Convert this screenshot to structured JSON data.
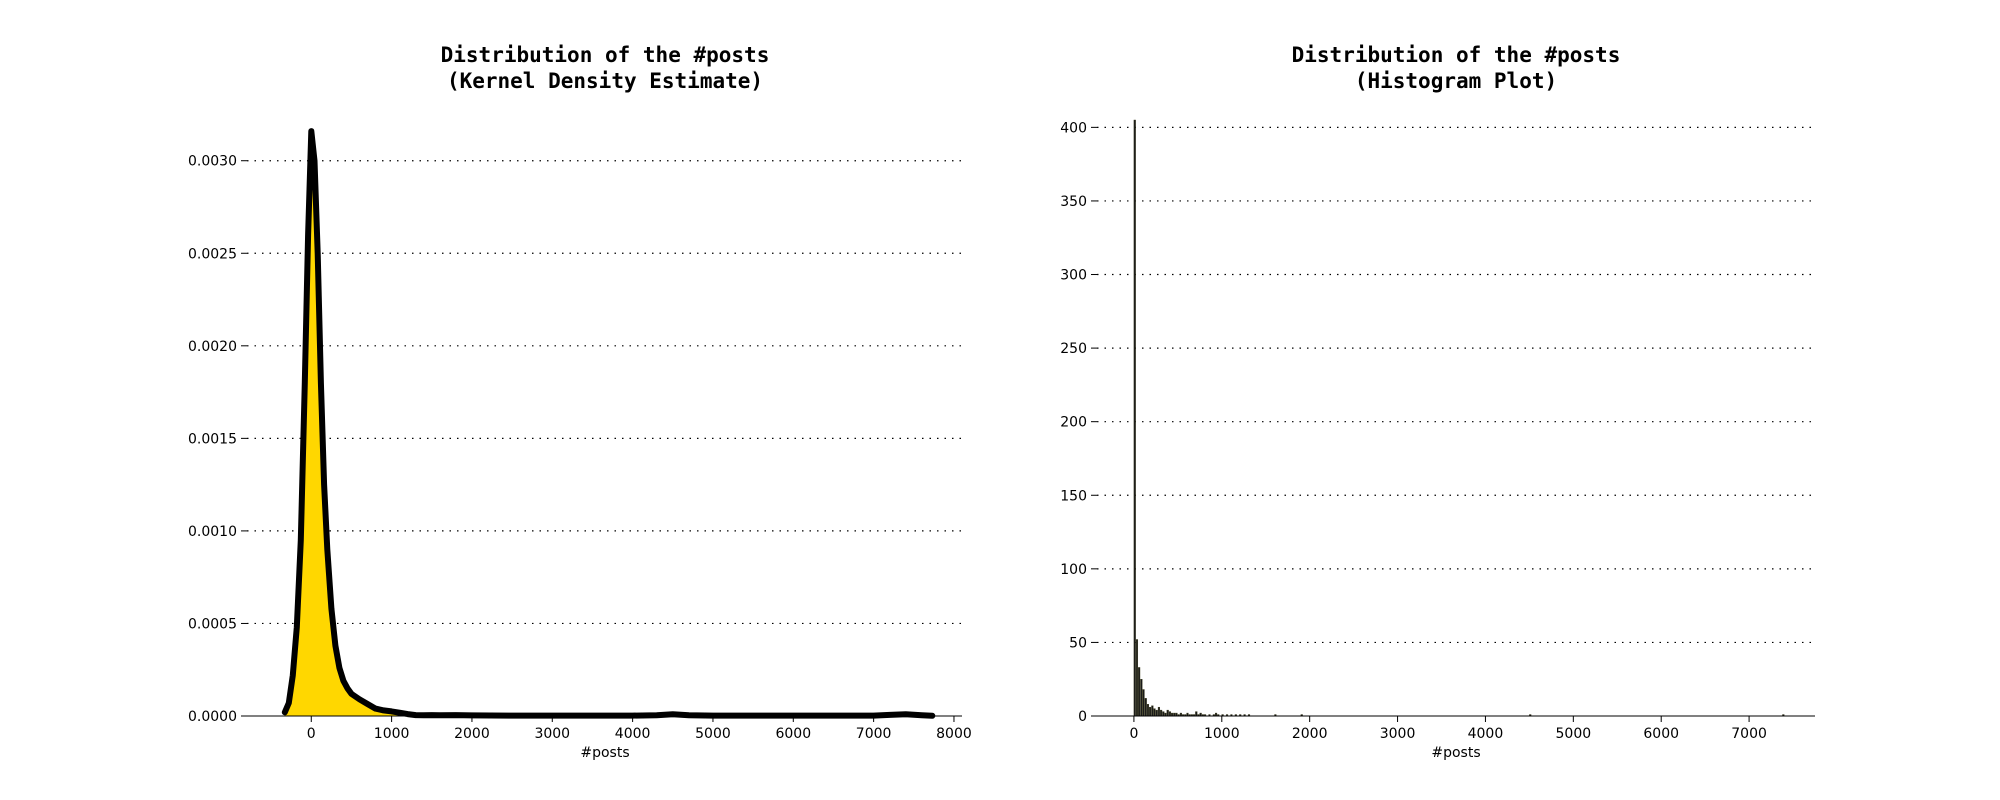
{
  "chart_data": [
    {
      "type": "area",
      "title_line1": "Distribution of the #posts",
      "title_line2": "(Kernel Density Estimate)",
      "xlabel": "#posts",
      "ylabel": "",
      "xlim": [
        -800,
        8100
      ],
      "ylim": [
        0,
        0.00322
      ],
      "xticks": [
        "0",
        "1000",
        "2000",
        "3000",
        "4000",
        "5000",
        "6000",
        "7000",
        "8000"
      ],
      "yticks": [
        "0.0000",
        "0.0005",
        "0.0010",
        "0.0015",
        "0.0020",
        "0.0025",
        "0.0030"
      ],
      "grid": "horizontal dotted",
      "fill_color": "#FFD700",
      "line_color": "#000000",
      "x": [
        -330,
        -280,
        -230,
        -180,
        -130,
        -80,
        -40,
        0,
        40,
        80,
        120,
        160,
        200,
        250,
        300,
        350,
        400,
        450,
        500,
        600,
        700,
        800,
        900,
        1000,
        1100,
        1200,
        1300,
        1400,
        1500,
        1600,
        1800,
        2000,
        2500,
        3000,
        3500,
        4000,
        4300,
        4500,
        4700,
        5000,
        6000,
        7000,
        7200,
        7400,
        7600,
        7730
      ],
      "y": [
        2e-05,
        7e-05,
        0.00022,
        0.00048,
        0.00095,
        0.0018,
        0.0026,
        0.00316,
        0.003,
        0.0025,
        0.0018,
        0.00125,
        0.0009,
        0.00058,
        0.00038,
        0.00026,
        0.00019,
        0.00015,
        0.00012,
        9e-05,
        6.5e-05,
        4e-05,
        3e-05,
        2.5e-05,
        1.8e-05,
        1e-05,
        5e-06,
        4e-06,
        5e-06,
        4e-06,
        5e-06,
        3e-06,
        2e-06,
        2e-06,
        2e-06,
        2e-06,
        4e-06,
        9e-06,
        4e-06,
        2e-06,
        2e-06,
        2e-06,
        6e-06,
        9e-06,
        4e-06,
        1e-06
      ]
    },
    {
      "type": "bar",
      "title_line1": "Distribution of the #posts",
      "title_line2": "(Histogram Plot)",
      "xlabel": "#posts",
      "ylabel": "",
      "xlim": [
        -420,
        7750
      ],
      "ylim": [
        0,
        405
      ],
      "xticks": [
        "0",
        "1000",
        "2000",
        "3000",
        "4000",
        "5000",
        "6000",
        "7000"
      ],
      "yticks": [
        "0",
        "50",
        "100",
        "150",
        "200",
        "250",
        "300",
        "350",
        "400"
      ],
      "grid": "horizontal dotted",
      "bar_color": "#1a1a1a",
      "bin_width": 25,
      "bin_starts": [
        0,
        25,
        50,
        75,
        100,
        125,
        150,
        175,
        200,
        225,
        250,
        275,
        300,
        325,
        350,
        375,
        400,
        425,
        450,
        475,
        500,
        525,
        550,
        575,
        600,
        625,
        650,
        675,
        700,
        725,
        750,
        775,
        800,
        850,
        900,
        925,
        950,
        1000,
        1050,
        1100,
        1150,
        1200,
        1250,
        1300,
        1600,
        1900,
        4500,
        7380
      ],
      "values": [
        405,
        52,
        33,
        25,
        18,
        12,
        8,
        6,
        7,
        5,
        4,
        6,
        4,
        3,
        2,
        4,
        3,
        2,
        2,
        2,
        1,
        2,
        1,
        1,
        2,
        1,
        1,
        1,
        3,
        1,
        2,
        1,
        1,
        1,
        1,
        2,
        1,
        1,
        1,
        1,
        1,
        1,
        1,
        1,
        1,
        1,
        1,
        1
      ]
    }
  ]
}
